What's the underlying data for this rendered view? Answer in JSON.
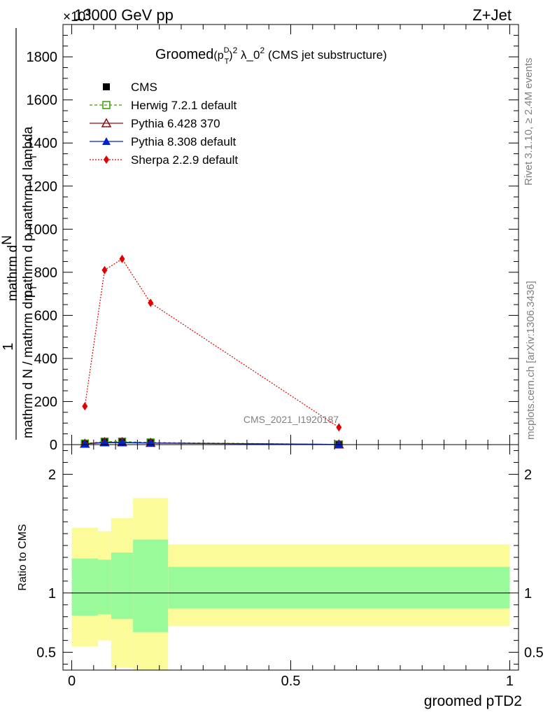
{
  "header": {
    "left": "13000 GeV pp",
    "right": "Z+Jet",
    "exponent": "×10",
    "exponent_power": "3"
  },
  "side_labels": {
    "rivet": "Rivet 3.1.10, ≥ 2.4M events",
    "mcplots": "mcplots.cern.ch [arXiv:1306.3436]"
  },
  "watermark": "CMS_2021_I1920187",
  "chart_data": [
    {
      "type": "line",
      "title": "Groomed (p_T^D)^2 λ_0^2 (CMS jet substructure)",
      "title_parts": {
        "pre": "Groomed",
        "open": "(p",
        "sup1": "D",
        "sub1": "T",
        "close": ")",
        "sup2": "2",
        "mid": " λ_0",
        "sup3": "2",
        "post": " (CMS jet substructure)"
      },
      "xlabel": "",
      "ylabel_numerator": "1",
      "ylabel_denominator_main": "mathrm d N / mathrm d p",
      "ylabel_denominator_sub": "T",
      "ylabel_stacked": "mathrm d p mathrm d lambda",
      "ylabel_stacked_top": "mathrm d",
      "ylabel_stacked_sub": "T",
      "ylabel_n": "N",
      "xlim": [
        -0.02,
        1.02
      ],
      "ylim": [
        0,
        1950
      ],
      "yticks": [
        0,
        200,
        400,
        600,
        800,
        1000,
        1200,
        1400,
        1600,
        1800
      ],
      "ytick_labels": [
        "0",
        "200",
        "400",
        "600",
        "800",
        "1000",
        "1200",
        "1400",
        "1600",
        "1800"
      ],
      "y_scale_note": "×10^3",
      "legend_position": "top-left",
      "x": [
        0.03,
        0.075,
        0.115,
        0.18,
        0.61
      ],
      "series": [
        {
          "name": "CMS",
          "color": "#000000",
          "marker": "square-filled",
          "line": "none",
          "values": [
            4,
            12,
            12,
            9,
            1
          ]
        },
        {
          "name": "Herwig 7.2.1 default",
          "color": "#3a9b00",
          "marker": "square-open",
          "line": "dashed",
          "values": [
            5,
            14,
            14,
            10,
            1
          ]
        },
        {
          "name": "Pythia 6.428 370",
          "color": "#8b1010",
          "marker": "triangle-open",
          "line": "solid",
          "values": [
            4,
            11,
            11,
            8,
            1
          ]
        },
        {
          "name": "Pythia 8.308 default",
          "color": "#0022cc",
          "marker": "triangle-filled",
          "line": "solid",
          "values": [
            3,
            9,
            9,
            7,
            1
          ]
        },
        {
          "name": "Sherpa 2.2.9 default",
          "color": "#e00000",
          "marker": "diamond-filled",
          "line": "dotted",
          "values": [
            178,
            810,
            862,
            658,
            80
          ]
        }
      ]
    },
    {
      "type": "area",
      "title": "",
      "xlabel": "groomed pTD2",
      "ylabel": "Ratio to CMS",
      "xlim": [
        -0.02,
        1.02
      ],
      "ylim": [
        0.35,
        2.25
      ],
      "xticks": [
        0,
        0.5,
        1
      ],
      "xtick_labels": [
        "0",
        "0.5",
        "1"
      ],
      "yticks": [
        0.5,
        1,
        2
      ],
      "ytick_labels": [
        "0.5",
        "1",
        "2"
      ],
      "reference_line": 1,
      "bins": [
        {
          "lo": 0.0,
          "hi": 0.06,
          "stat_lo": 0.81,
          "stat_hi": 1.29,
          "tot_lo": 0.55,
          "tot_hi": 1.55
        },
        {
          "lo": 0.06,
          "hi": 0.09,
          "stat_lo": 0.82,
          "stat_hi": 1.28,
          "tot_lo": 0.6,
          "tot_hi": 1.52
        },
        {
          "lo": 0.09,
          "hi": 0.14,
          "stat_lo": 0.78,
          "stat_hi": 1.34,
          "tot_lo": 0.37,
          "tot_hi": 1.63
        },
        {
          "lo": 0.14,
          "hi": 0.22,
          "stat_lo": 0.67,
          "stat_hi": 1.45,
          "tot_lo": 0.35,
          "tot_hi": 1.8
        },
        {
          "lo": 0.22,
          "hi": 1.0,
          "stat_lo": 0.87,
          "stat_hi": 1.22,
          "tot_lo": 0.72,
          "tot_hi": 1.41
        }
      ],
      "band_colors": {
        "stat": "#99fa99",
        "tot": "#fbfb99"
      }
    }
  ]
}
